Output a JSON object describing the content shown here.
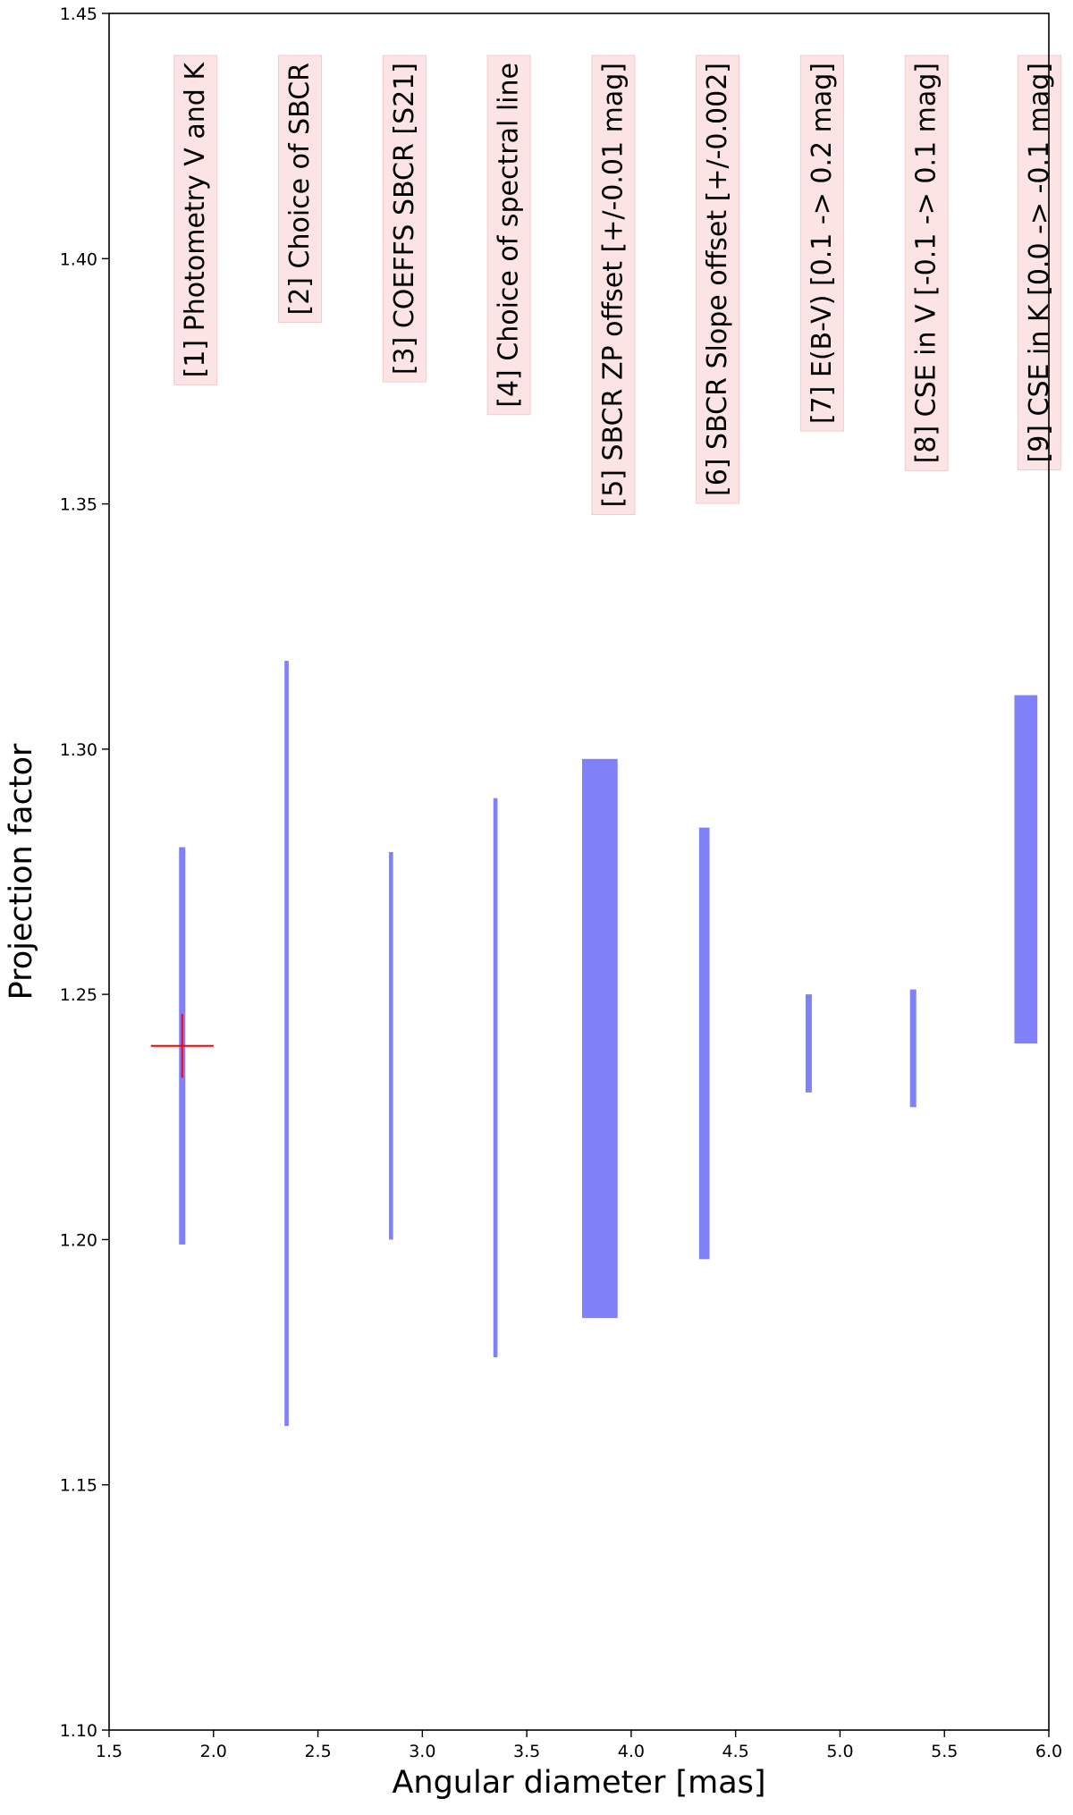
{
  "chart_data": {
    "type": "bar",
    "title": "",
    "xlabel": "Angular diameter [mas]",
    "ylabel": "Projection factor",
    "xlim": [
      1.5,
      6.0
    ],
    "ylim": [
      1.1,
      1.45
    ],
    "xticks": [
      "1.5",
      "2.0",
      "2.5",
      "3.0",
      "3.5",
      "4.0",
      "4.5",
      "5.0",
      "5.5",
      "6.0"
    ],
    "yticks": [
      "1.10",
      "1.15",
      "1.20",
      "1.25",
      "1.30",
      "1.35",
      "1.40",
      "1.45"
    ],
    "grid": false,
    "bar_color": "#8080f8",
    "annotation_bg": "#fde4e4",
    "series": [
      {
        "label": "[1] Photometry V and K",
        "x": 1.85,
        "width": 0.03,
        "bottom": 1.199,
        "top": 1.28
      },
      {
        "label": "[2] Choice of SBCR",
        "x": 2.35,
        "width": 0.02,
        "bottom": 1.162,
        "top": 1.318
      },
      {
        "label": "[3] COEFFS SBCR [S21]",
        "x": 2.85,
        "width": 0.02,
        "bottom": 1.2,
        "top": 1.279
      },
      {
        "label": "[4] Choice of spectral line",
        "x": 3.35,
        "width": 0.02,
        "bottom": 1.176,
        "top": 1.29
      },
      {
        "label": "[5] SBCR ZP offset [+/-0.01 mag]",
        "x": 3.85,
        "width": 0.17,
        "bottom": 1.184,
        "top": 1.298
      },
      {
        "label": "[6] SBCR Slope offset [+/-0.002]",
        "x": 4.35,
        "width": 0.05,
        "bottom": 1.196,
        "top": 1.284
      },
      {
        "label": "[7] E(B-V) [0.1 -> 0.2 mag]",
        "x": 4.85,
        "width": 0.03,
        "bottom": 1.23,
        "top": 1.25
      },
      {
        "label": "[8] CSE in V [-0.1 -> 0.1 mag]",
        "x": 5.35,
        "width": 0.03,
        "bottom": 1.227,
        "top": 1.251
      },
      {
        "label": "[9] CSE in K [0.0 -> -0.1 mag]",
        "x": 5.89,
        "width": 0.11,
        "bottom": 1.24,
        "top": 1.311
      }
    ],
    "reference_point": {
      "x": 1.85,
      "y": 1.2395,
      "xerr": 0.15,
      "yerr": 0.0065,
      "color": "#ff0000"
    }
  }
}
